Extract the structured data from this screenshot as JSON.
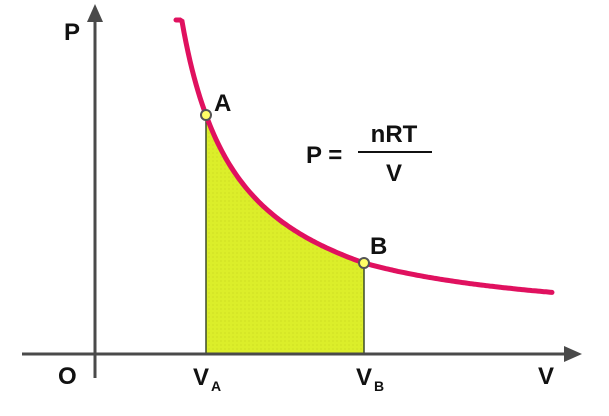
{
  "diagram": {
    "axis_y_label": "P",
    "axis_x_label": "V",
    "origin_label": "O",
    "point_a_label": "A",
    "point_b_label": "B",
    "tick_va_main": "V",
    "tick_va_sub": "A",
    "tick_vb_main": "V",
    "tick_vb_sub": "B",
    "equation_lhs": "P =",
    "equation_numerator": "nRT",
    "equation_denominator": "V"
  },
  "colors": {
    "curve": "#e0115f",
    "fill": "#dcee2a",
    "axis": "#4a4a4a",
    "point_fill": "#ffff66",
    "point_stroke": "#555555"
  }
}
